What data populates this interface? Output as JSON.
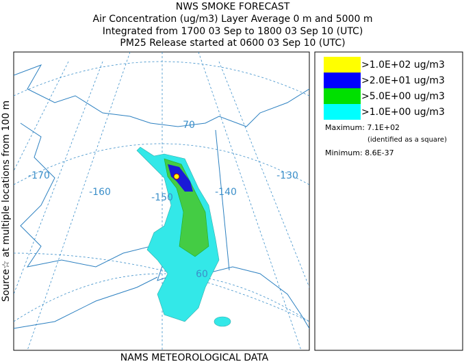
{
  "header": {
    "title": "NWS SMOKE FORECAST",
    "lines": [
      "Air Concentration (ug/m3) Layer Average    0 m and  5000 m",
      "Integrated from 1700 03 Sep to 1800 03 Sep 10 (UTC)",
      "PM25 Release started at 0600 03 Sep 10 (UTC)"
    ]
  },
  "side_label": "Source☆ at multiple locations from 100 m",
  "map": {
    "graticule_labels": [
      "-170",
      "-160",
      "-150",
      "-140",
      "-130",
      "70",
      "60"
    ]
  },
  "legend": {
    "entries": [
      {
        "label": ">1.0E+02 ug/m3",
        "color": "#ffff00"
      },
      {
        "label": ">2.0E+01 ug/m3",
        "color": "#0000ff"
      },
      {
        "label": ">5.0E+00 ug/m3",
        "color": "#00e000"
      },
      {
        "label": ">1.0E+00 ug/m3",
        "color": "#00ffff"
      }
    ],
    "maximum": "Maximum: 7.1E+02",
    "maximum_note": "(identified as a square)",
    "minimum": "Minimum: 8.6E-37"
  },
  "footer": "NAMS METEOROLOGICAL DATA"
}
